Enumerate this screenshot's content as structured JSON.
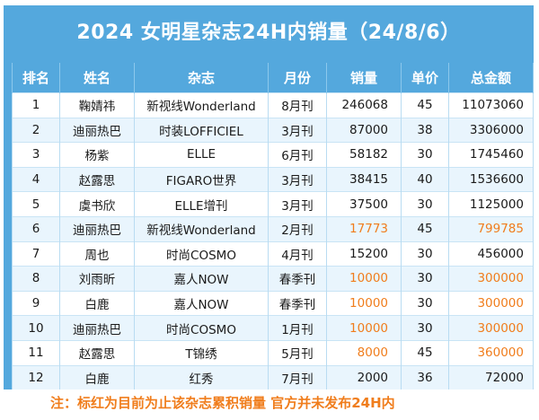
{
  "title": "2024 女明星杂志24H内销量（24/8/6）",
  "columns": [
    "排名",
    "姓名",
    "杂志",
    "月份",
    "销量",
    "单价",
    "总金额"
  ],
  "rows": [
    {
      "rank": "1",
      "name": "鞠婧祎",
      "magazine": "新视线Wonderland",
      "month": "8月刊",
      "sales": "246068",
      "price": "45",
      "total": "11073060",
      "cumulative": false
    },
    {
      "rank": "2",
      "name": "迪丽热巴",
      "magazine": "时装LOFFICIEL",
      "month": "3月刊",
      "sales": "87000",
      "price": "38",
      "total": "3306000",
      "cumulative": false
    },
    {
      "rank": "3",
      "name": "杨紫",
      "magazine": "ELLE",
      "month": "6月刊",
      "sales": "58182",
      "price": "30",
      "total": "1745460",
      "cumulative": false
    },
    {
      "rank": "4",
      "name": "赵露思",
      "magazine": "FIGARO世界",
      "month": "3月刊",
      "sales": "38415",
      "price": "40",
      "total": "1536600",
      "cumulative": false
    },
    {
      "rank": "5",
      "name": "虞书欣",
      "magazine": "ELLE增刊",
      "month": "3月刊",
      "sales": "37500",
      "price": "30",
      "total": "1125000",
      "cumulative": false
    },
    {
      "rank": "6",
      "name": "迪丽热巴",
      "magazine": "新视线Wonderland",
      "month": "2月刊",
      "sales": "17773",
      "price": "45",
      "total": "799785",
      "cumulative": true
    },
    {
      "rank": "7",
      "name": "周也",
      "magazine": "时尚COSMO",
      "month": "4月刊",
      "sales": "15200",
      "price": "30",
      "total": "456000",
      "cumulative": false
    },
    {
      "rank": "8",
      "name": "刘雨昕",
      "magazine": "嘉人NOW",
      "month": "春季刊",
      "sales": "10000",
      "price": "30",
      "total": "300000",
      "cumulative": true
    },
    {
      "rank": "9",
      "name": "白鹿",
      "magazine": "嘉人NOW",
      "month": "春季刊",
      "sales": "10000",
      "price": "30",
      "total": "300000",
      "cumulative": true
    },
    {
      "rank": "10",
      "name": "迪丽热巴",
      "magazine": "时尚COSMO",
      "month": "1月刊",
      "sales": "10000",
      "price": "30",
      "total": "300000",
      "cumulative": true
    },
    {
      "rank": "11",
      "name": "赵露思",
      "magazine": "T锦绣",
      "month": "5月刊",
      "sales": "8000",
      "price": "45",
      "total": "360000",
      "cumulative": true
    },
    {
      "rank": "12",
      "name": "白鹿",
      "magazine": "红秀",
      "month": "7月刊",
      "sales": "2000",
      "price": "36",
      "total": "72000",
      "cumulative": false
    }
  ],
  "note": "注：标红为目前为止该杂志累积销量 官方并未发布24H内",
  "colors": {
    "header_bg": "#54a8dd",
    "highlight_text": "#f07d1c",
    "row_alt_bg": "#e9f5fd"
  }
}
